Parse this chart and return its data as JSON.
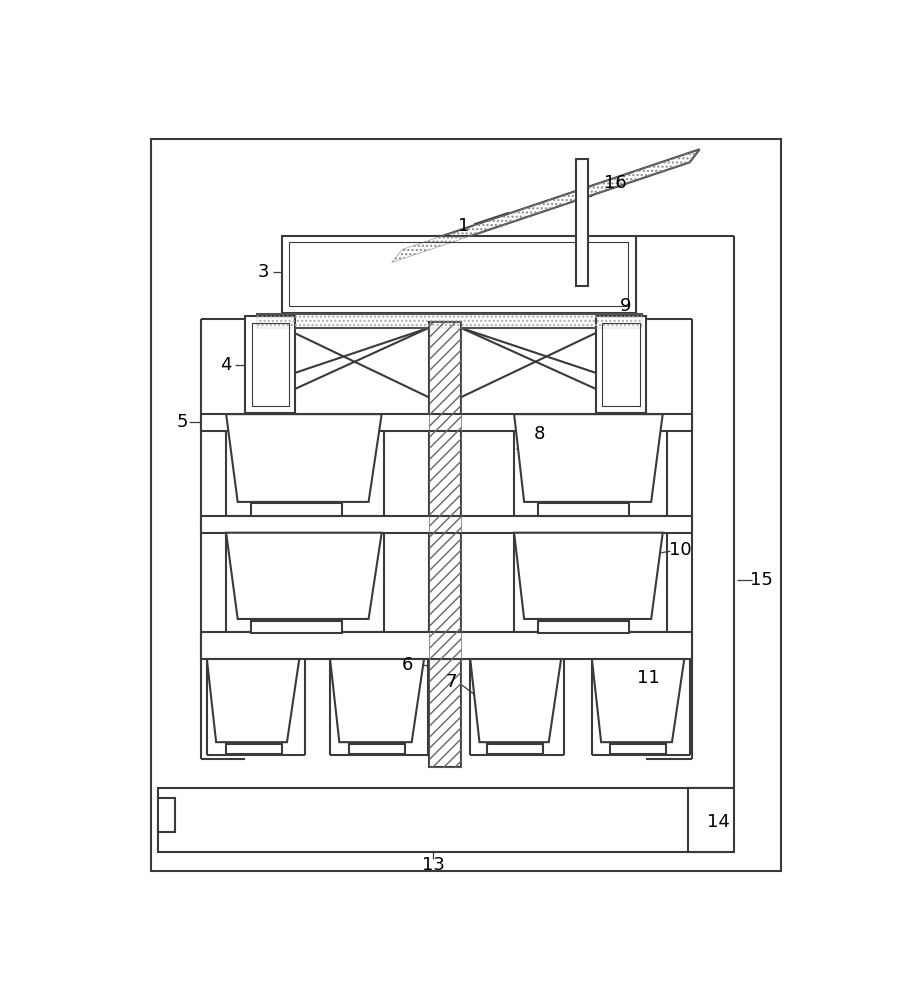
{
  "bg_color": "#ffffff",
  "lc": "#3a3a3a",
  "lw": 1.5,
  "lw_thin": 0.8,
  "fs": 13
}
